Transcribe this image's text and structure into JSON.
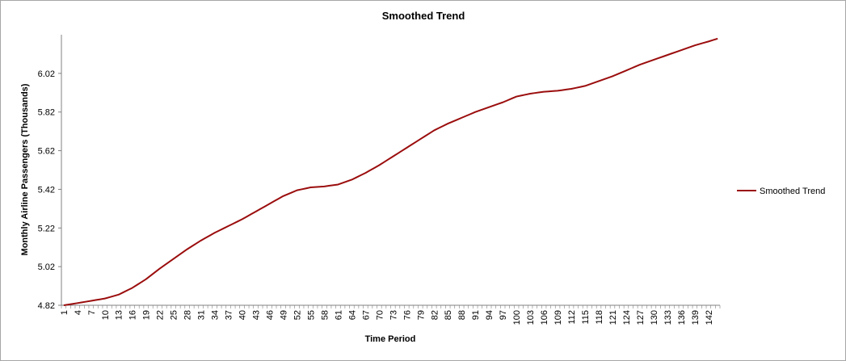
{
  "chart_data": {
    "type": "line",
    "title": "Smoothed Trend",
    "xlabel": "Time Period",
    "ylabel": "Monthly Airline Passengers (Thousands)",
    "x_range": [
      1,
      144
    ],
    "x_tick_labels": [
      "1",
      "4",
      "7",
      "10",
      "13",
      "16",
      "19",
      "22",
      "25",
      "28",
      "31",
      "34",
      "37",
      "40",
      "43",
      "46",
      "49",
      "52",
      "55",
      "58",
      "61",
      "64",
      "67",
      "70",
      "73",
      "76",
      "79",
      "82",
      "85",
      "88",
      "91",
      "94",
      "97",
      "100",
      "103",
      "106",
      "109",
      "112",
      "115",
      "118",
      "121",
      "124",
      "127",
      "130",
      "133",
      "136",
      "139",
      "142"
    ],
    "y_tick_labels": [
      "4.82",
      "5.02",
      "5.22",
      "5.42",
      "5.62",
      "5.82",
      "6.02"
    ],
    "ylim": [
      4.82,
      6.22
    ],
    "grid": false,
    "legend_position": "right",
    "series": [
      {
        "name": "Smoothed Trend",
        "color": "#9b0d0d",
        "anchors": [
          [
            1,
            4.82
          ],
          [
            5,
            4.835
          ],
          [
            10,
            4.855
          ],
          [
            13,
            4.875
          ],
          [
            16,
            4.91
          ],
          [
            19,
            4.955
          ],
          [
            22,
            5.01
          ],
          [
            25,
            5.06
          ],
          [
            28,
            5.11
          ],
          [
            31,
            5.155
          ],
          [
            34,
            5.195
          ],
          [
            37,
            5.23
          ],
          [
            40,
            5.265
          ],
          [
            43,
            5.305
          ],
          [
            46,
            5.345
          ],
          [
            49,
            5.385
          ],
          [
            52,
            5.415
          ],
          [
            55,
            5.43
          ],
          [
            58,
            5.435
          ],
          [
            61,
            5.445
          ],
          [
            64,
            5.47
          ],
          [
            67,
            5.505
          ],
          [
            70,
            5.545
          ],
          [
            73,
            5.59
          ],
          [
            76,
            5.635
          ],
          [
            79,
            5.68
          ],
          [
            82,
            5.725
          ],
          [
            85,
            5.76
          ],
          [
            88,
            5.79
          ],
          [
            91,
            5.82
          ],
          [
            94,
            5.845
          ],
          [
            97,
            5.87
          ],
          [
            100,
            5.9
          ],
          [
            103,
            5.915
          ],
          [
            106,
            5.925
          ],
          [
            109,
            5.93
          ],
          [
            112,
            5.94
          ],
          [
            115,
            5.955
          ],
          [
            118,
            5.98
          ],
          [
            121,
            6.005
          ],
          [
            124,
            6.035
          ],
          [
            127,
            6.065
          ],
          [
            130,
            6.09
          ],
          [
            133,
            6.115
          ],
          [
            136,
            6.14
          ],
          [
            139,
            6.165
          ],
          [
            142,
            6.185
          ],
          [
            144,
            6.2
          ]
        ]
      }
    ]
  }
}
